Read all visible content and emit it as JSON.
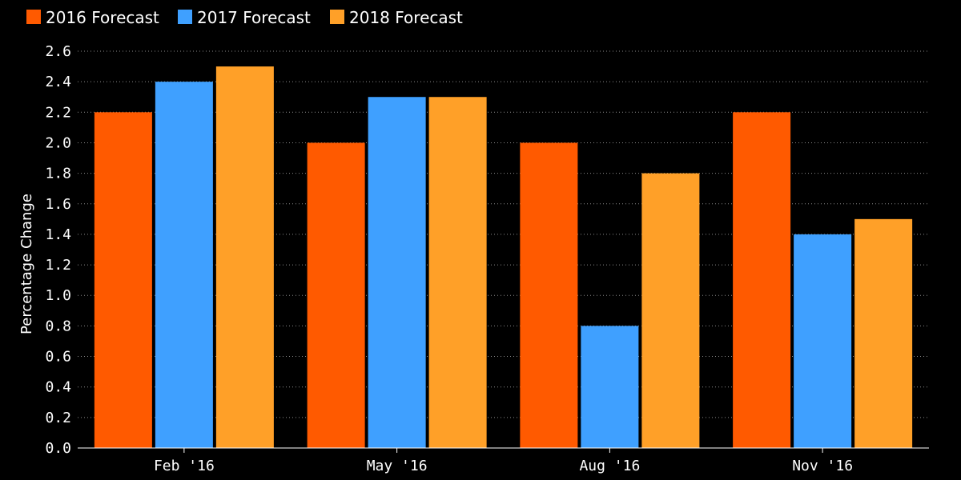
{
  "chart_data": {
    "type": "bar",
    "title": "",
    "xlabel": "",
    "ylabel": "Percentage Change",
    "ylim": [
      0,
      2.6
    ],
    "yticks": [
      "0.0",
      "0.2",
      "0.4",
      "0.6",
      "0.8",
      "1.0",
      "1.2",
      "1.4",
      "1.6",
      "1.8",
      "2.0",
      "2.2",
      "2.4",
      "2.6"
    ],
    "grid": true,
    "legend_position": "top-left",
    "categories": [
      "Feb '16",
      "May '16",
      "Aug '16",
      "Nov '16"
    ],
    "series": [
      {
        "name": "2016 Forecast",
        "color": "#ff5a00",
        "values": [
          2.2,
          2.0,
          2.0,
          2.2
        ]
      },
      {
        "name": "2017 Forecast",
        "color": "#3fa0ff",
        "values": [
          2.4,
          2.3,
          0.8,
          1.4
        ]
      },
      {
        "name": "2018 Forecast",
        "color": "#ffa028",
        "values": [
          2.5,
          2.3,
          1.8,
          1.5
        ]
      }
    ]
  }
}
